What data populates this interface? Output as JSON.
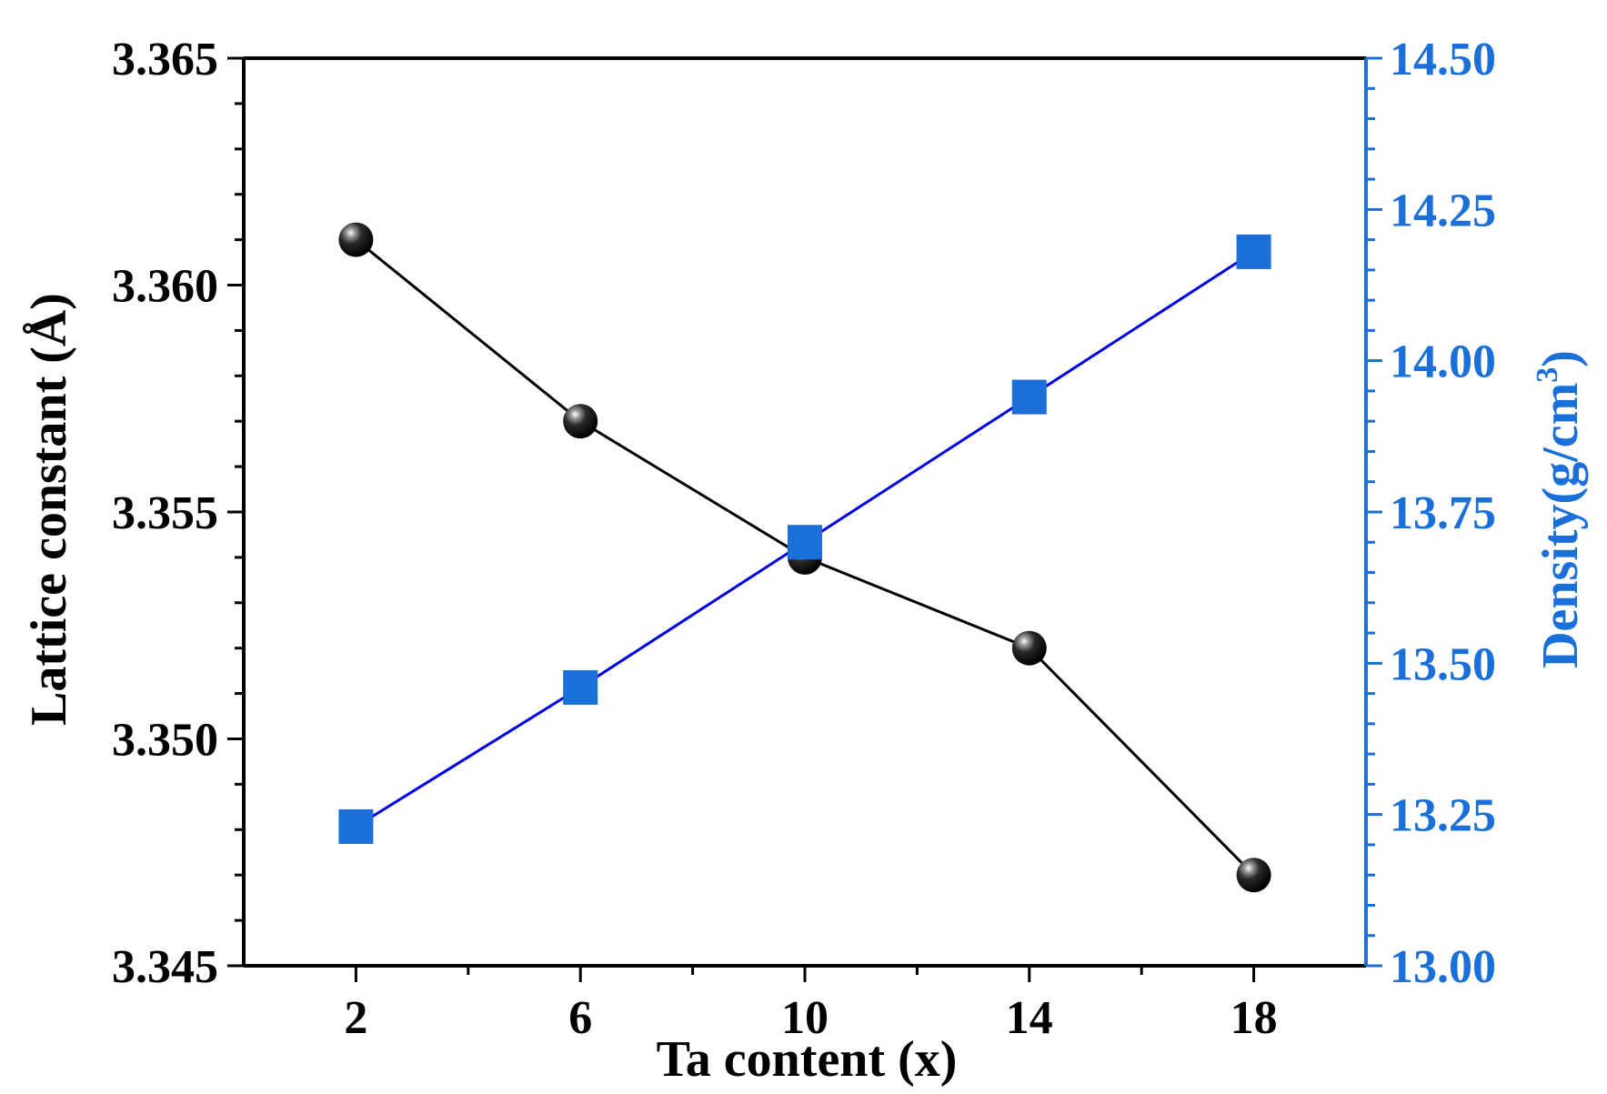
{
  "chart_data": {
    "type": "line",
    "title": "",
    "xlabel": "Ta content (x)",
    "ylabel": "Lattice constant (Å)",
    "y2label_main": "Density(g/cm",
    "y2label_sup": "3",
    "y2label_close": ")",
    "x_ticks": [
      "2",
      "6",
      "10",
      "14",
      "18"
    ],
    "y_ticks": [
      "3.345",
      "3.350",
      "3.355",
      "3.360",
      "3.365"
    ],
    "y2_ticks": [
      "13.00",
      "13.25",
      "13.50",
      "13.75",
      "14.00",
      "14.25",
      "14.50"
    ],
    "xlim": [
      0,
      20
    ],
    "ylim": [
      3.345,
      3.365
    ],
    "y2lim": [
      13.0,
      14.5
    ],
    "series": [
      {
        "axis": "left",
        "marker": "circle",
        "color": "#000000",
        "x": [
          2,
          6,
          10,
          14,
          18
        ],
        "values": [
          3.361,
          3.357,
          3.354,
          3.352,
          3.347
        ]
      },
      {
        "axis": "right",
        "marker": "square",
        "color": "#1a6fd8",
        "line_color": "#0000ee",
        "x": [
          2,
          6,
          10,
          14,
          18
        ],
        "values": [
          13.23,
          13.46,
          13.7,
          13.94,
          14.18
        ]
      }
    ],
    "grid": false,
    "right_axis_color": "#1a6fd8"
  }
}
